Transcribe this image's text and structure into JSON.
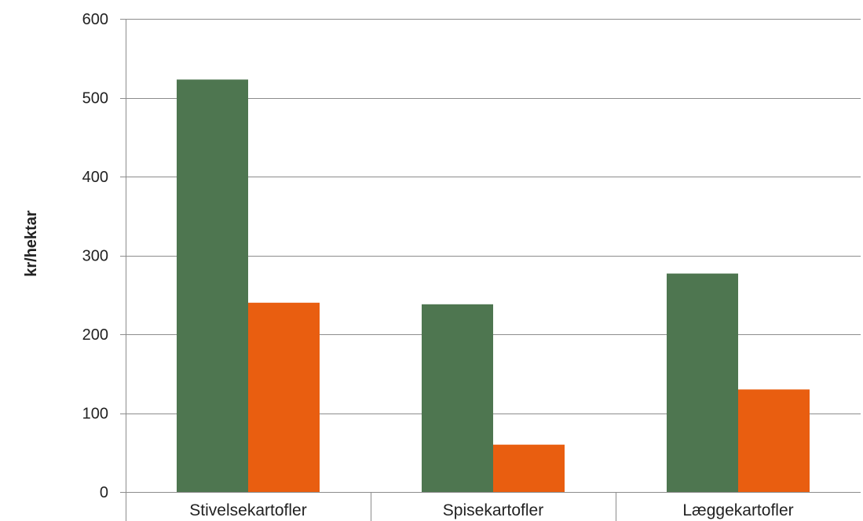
{
  "chart_data": {
    "type": "bar",
    "title": "",
    "xlabel": "",
    "ylabel": "kr/hektar",
    "ylim": [
      0,
      600
    ],
    "yticks": [
      0,
      100,
      200,
      300,
      400,
      500,
      600
    ],
    "grid": true,
    "legend": "none",
    "categories": [
      "Stivelsekartofler",
      "Spisekartofler",
      "Læggekartofler"
    ],
    "series": [
      {
        "color": "#4E7650",
        "values": [
          523,
          238,
          277
        ]
      },
      {
        "color": "#E95E10",
        "values": [
          240,
          60,
          130
        ]
      }
    ]
  }
}
